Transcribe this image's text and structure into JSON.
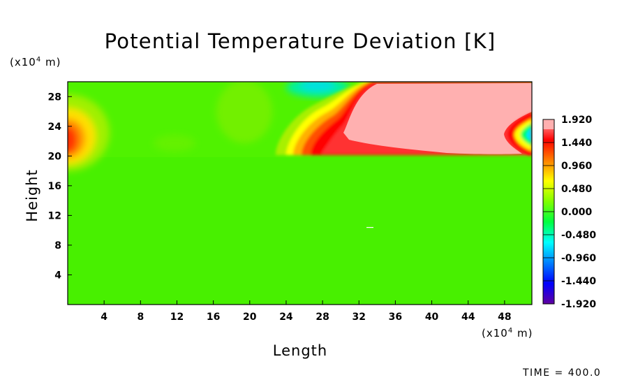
{
  "chart_data": {
    "type": "heatmap",
    "title": "Potential Temperature Deviation [K]",
    "xlabel": "Length",
    "ylabel": "Height",
    "x_unit": "(x10⁴ m)",
    "y_unit": "(x10⁴ m)",
    "xlim": [
      0,
      51
    ],
    "ylim": [
      0,
      30
    ],
    "x_ticks": [
      "4",
      "8",
      "12",
      "16",
      "20",
      "24",
      "28",
      "32",
      "36",
      "40",
      "44",
      "48"
    ],
    "y_ticks": [
      "4",
      "8",
      "12",
      "16",
      "20",
      "24",
      "28"
    ],
    "colorbar": {
      "min": -1.92,
      "max": 1.92,
      "labels": [
        "1.920",
        "1.440",
        "0.960",
        "0.480",
        "0.000",
        "-0.480",
        "-0.960",
        "-1.440",
        "-1.920"
      ],
      "colors": [
        "#ffb0b0",
        "#ff0000",
        "#ff8000",
        "#ffff00",
        "#80ff00",
        "#00ff40",
        "#00ffff",
        "#0080ff",
        "#0000ff",
        "#6000a0"
      ]
    },
    "regions": [
      {
        "description_value": 0.0,
        "x": [
          0,
          51
        ],
        "y": [
          0,
          20
        ]
      },
      {
        "description_value": 1.92,
        "x": [
          31,
          51
        ],
        "y": [
          20.5,
          30
        ]
      },
      {
        "description_value": 1.0,
        "x": [
          0,
          2
        ],
        "y": [
          20,
          25
        ]
      },
      {
        "description_value": -0.6,
        "x": [
          48,
          51
        ],
        "y": [
          22,
          26
        ]
      },
      {
        "description_value": -0.3,
        "x": [
          24,
          31
        ],
        "y": [
          28.5,
          30
        ]
      }
    ],
    "time_label": "TIME = 400.0"
  }
}
